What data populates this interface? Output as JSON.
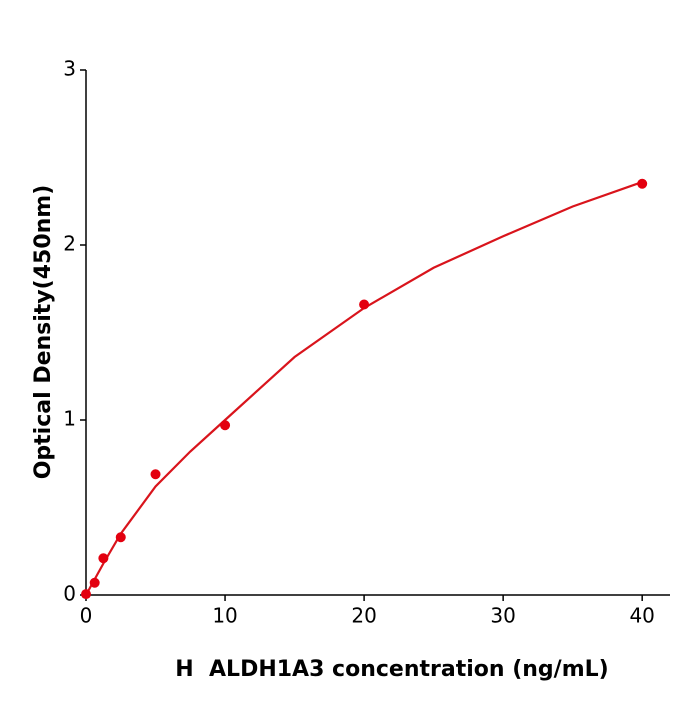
{
  "chart_data": {
    "type": "scatter",
    "xlabel": "H  ALDH1A3 concentration (ng/mL)",
    "ylabel": "Optical Density(450nm)",
    "xlim": [
      0,
      42
    ],
    "ylim": [
      0,
      3
    ],
    "xticks": [
      0,
      10,
      20,
      30,
      40
    ],
    "yticks": [
      0,
      1,
      2,
      3
    ],
    "series": [
      {
        "mode": "markers",
        "color": "#e3000f",
        "x": [
          0,
          0.625,
          1.25,
          2.5,
          5,
          10,
          20,
          40
        ],
        "values": [
          0.005,
          0.07,
          0.21,
          0.33,
          0.69,
          0.97,
          1.66,
          2.35
        ]
      },
      {
        "mode": "line",
        "color": "#d9141c",
        "x": [
          0,
          1.25,
          2.5,
          5,
          7.5,
          10,
          15,
          20,
          25,
          30,
          35,
          40
        ],
        "values": [
          0,
          0.18,
          0.35,
          0.62,
          0.82,
          1.0,
          1.36,
          1.64,
          1.87,
          2.05,
          2.22,
          2.36
        ]
      }
    ]
  }
}
